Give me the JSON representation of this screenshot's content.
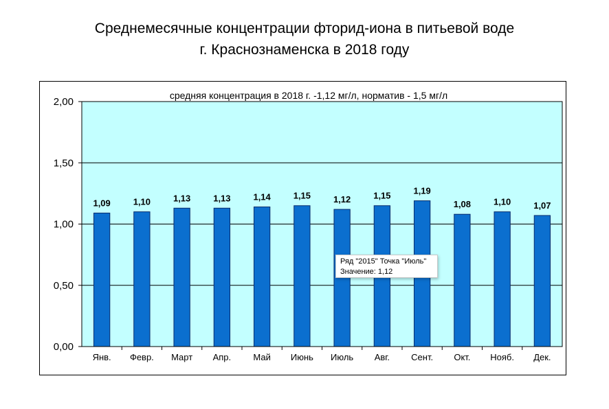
{
  "title_line1": "Среднемесячные концентрации фторид-иона в питьевой воде",
  "title_line2": "г. Краснознаменска в 2018 году",
  "colors": {
    "plot_background": "#c3ffff",
    "bar_fill": "#0b6fcf",
    "bar_stroke": "#0a2a6b",
    "gridline": "#000000"
  },
  "tooltip": {
    "line1": "Ряд \"2015\" Точка \"Июль\"",
    "line2": "Значение: 1,12"
  },
  "chart_data": {
    "type": "bar",
    "subtitle": "средняя концентрация  в 2018 г. -1,12 мг/л, норматив - 1,5 мг/л",
    "categories": [
      "Янв.",
      "Февр.",
      "Март",
      "Апр.",
      "Май",
      "Июнь",
      "Июль",
      "Авг.",
      "Сент.",
      "Окт.",
      "Нояб.",
      "Дек."
    ],
    "values": [
      1.09,
      1.1,
      1.13,
      1.13,
      1.14,
      1.15,
      1.12,
      1.15,
      1.19,
      1.08,
      1.1,
      1.07
    ],
    "data_labels": [
      "1,09",
      "1,10",
      "1,13",
      "1,13",
      "1,14",
      "1,15",
      "1,12",
      "1,15",
      "1,19",
      "1,08",
      "1,10",
      "1,07"
    ],
    "series": [
      {
        "name": "2015",
        "values": [
          1.09,
          1.1,
          1.13,
          1.13,
          1.14,
          1.15,
          1.12,
          1.15,
          1.19,
          1.08,
          1.1,
          1.07
        ]
      }
    ],
    "ylim": [
      0,
      2
    ],
    "yticks": [
      0,
      0.5,
      1,
      1.5,
      2
    ],
    "ytick_labels": [
      "0,00",
      "0,50",
      "1,00",
      "1,50",
      "2,00"
    ],
    "xlabel": "",
    "ylabel": "",
    "grid": true,
    "legend": "none"
  }
}
